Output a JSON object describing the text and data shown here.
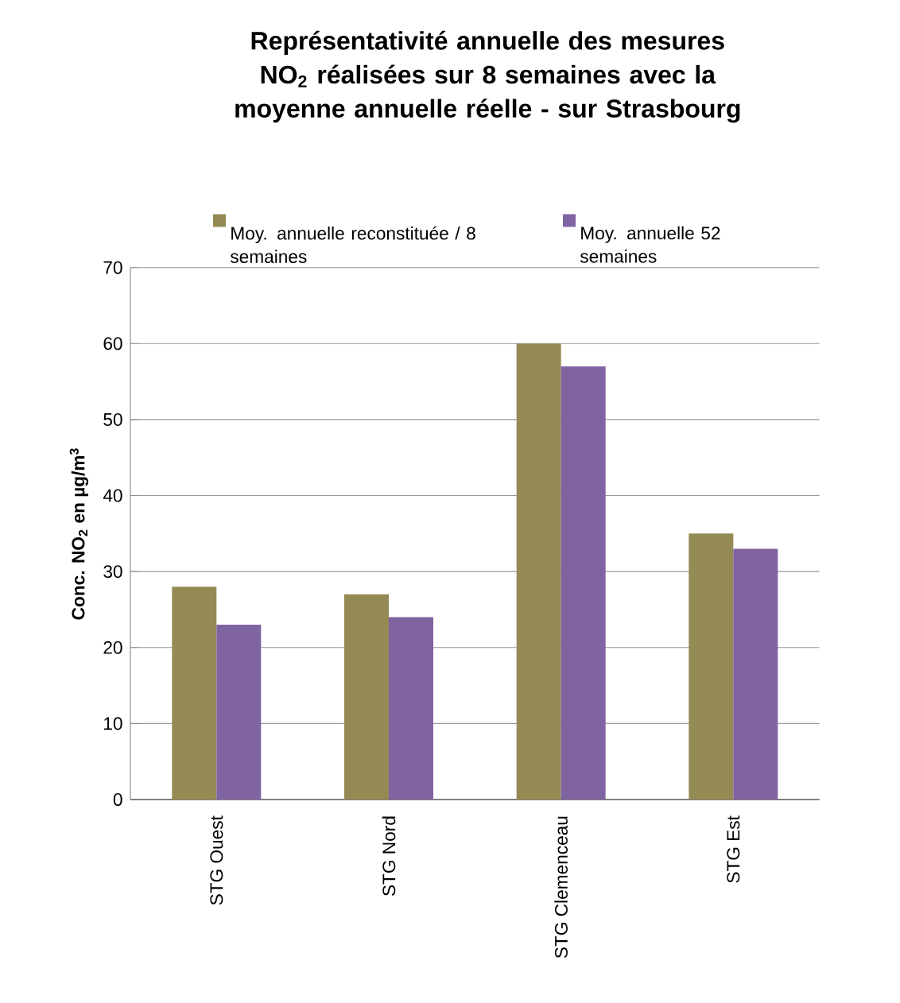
{
  "chart_data": {
    "type": "bar",
    "title": "Représentativité annuelle des mesures NO$_{2}$ réalisées sur 8 semaines avec la moyenne annuelle réelle  - sur Strasbourg",
    "ylabel": "Conc. NO$_{2}$ en µg/m$^{3}$",
    "categories": [
      "STG Ouest",
      "STG Nord",
      "STG Clemenceau",
      "STG Est"
    ],
    "series": [
      {
        "name": "Moy. annuelle reconstituée / 8 semaines",
        "color": "#948a54",
        "values": [
          28,
          27,
          60,
          35
        ]
      },
      {
        "name": "Moy. annuelle 52 semaines",
        "color": "#8064a2",
        "values": [
          23,
          24,
          57,
          33
        ]
      }
    ],
    "ylim": [
      0,
      70
    ],
    "yticks": [
      0,
      10,
      20,
      30,
      40,
      50,
      60,
      70
    ],
    "grid": "y",
    "legend": "top"
  }
}
